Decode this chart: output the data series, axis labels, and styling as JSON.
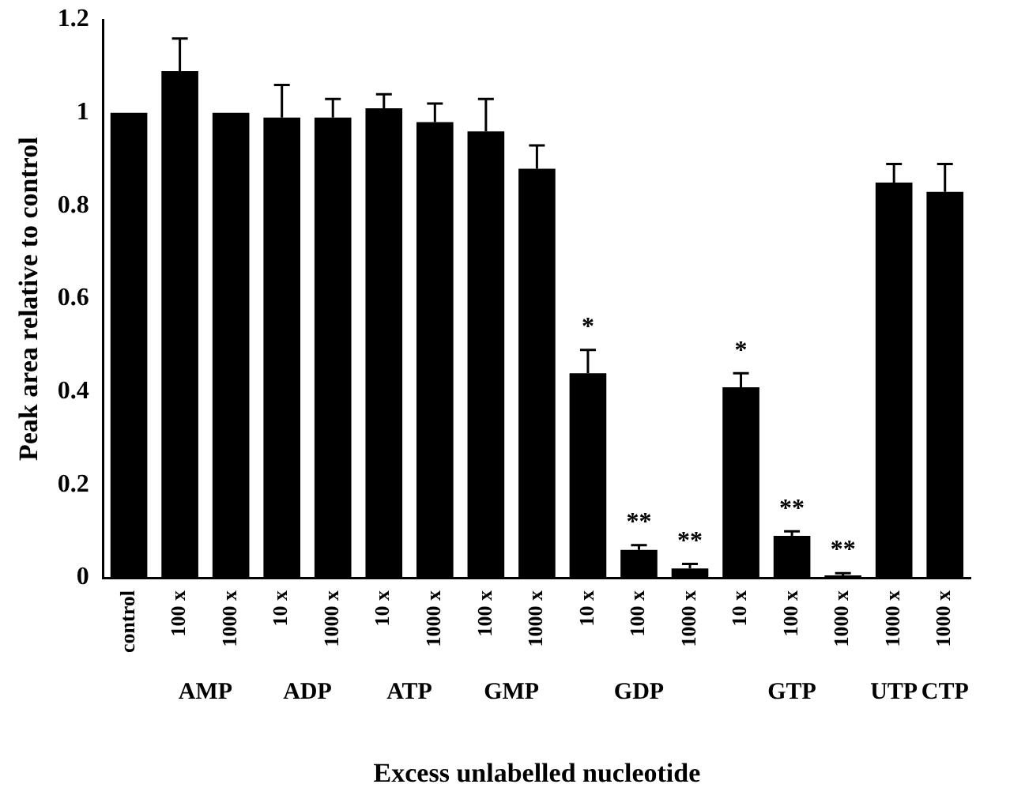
{
  "chart_data": {
    "type": "bar",
    "ylabel": "Peak area relative to control",
    "xlabel": "Excess unlabelled nucleotide",
    "categories": [
      "control",
      "100 x",
      "1000 x",
      "10 x",
      "1000 x",
      "10 x",
      "1000 x",
      "100 x",
      "1000 x",
      "10 x",
      "100 x",
      "1000 x",
      "10 x",
      "100 x",
      "1000 x",
      "1000 x",
      "1000 x"
    ],
    "values": [
      1.0,
      1.09,
      1.0,
      0.99,
      0.99,
      1.01,
      0.98,
      0.96,
      0.88,
      0.44,
      0.06,
      0.02,
      0.41,
      0.09,
      0.005,
      0.85,
      0.83
    ],
    "color": "#000000",
    "errors": [
      null,
      [
        1.09,
        1.16
      ],
      null,
      [
        0.99,
        1.06
      ],
      [
        0.99,
        1.03
      ],
      [
        1.01,
        1.04
      ],
      [
        0.98,
        1.02
      ],
      [
        0.96,
        1.03
      ],
      [
        0.88,
        0.93
      ],
      [
        0.44,
        0.49
      ],
      [
        0.06,
        0.07
      ],
      [
        0.02,
        0.03
      ],
      [
        0.41,
        0.44
      ],
      [
        0.09,
        0.1
      ],
      [
        0.005,
        0.01
      ],
      [
        0.85,
        0.89
      ],
      [
        0.83,
        0.89
      ]
    ],
    "value_labels": [
      null,
      null,
      null,
      null,
      null,
      null,
      null,
      null,
      null,
      "*",
      "**",
      "**",
      "*",
      "**",
      "**",
      null,
      null
    ],
    "annotations": [
      "AMP",
      "ADP",
      "ATP",
      "GMP",
      "GDP",
      "GTP",
      "UTP",
      "CTP"
    ],
    "ylim": [
      0,
      1.2
    ],
    "yticks": [
      0,
      0.2,
      0.4,
      0.6,
      0.8,
      1,
      1.2
    ],
    "grid": false,
    "legend": false
  }
}
